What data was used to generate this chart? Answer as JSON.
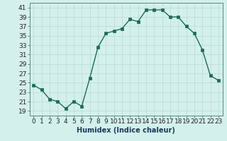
{
  "x": [
    0,
    1,
    2,
    3,
    4,
    5,
    6,
    7,
    8,
    9,
    10,
    11,
    12,
    13,
    14,
    15,
    16,
    17,
    18,
    19,
    20,
    21,
    22,
    23
  ],
  "y": [
    24.5,
    23.5,
    21.5,
    21.0,
    19.5,
    21.0,
    20.0,
    26.0,
    32.5,
    35.5,
    36.0,
    36.5,
    38.5,
    38.0,
    40.5,
    40.5,
    40.5,
    39.0,
    39.0,
    37.0,
    35.5,
    32.0,
    26.5,
    25.5
  ],
  "line_color": "#1a6b5a",
  "marker": "s",
  "markersize": 2.5,
  "linewidth": 1.0,
  "xlabel": "Humidex (Indice chaleur)",
  "ylim": [
    18,
    42
  ],
  "xlim": [
    -0.5,
    23.5
  ],
  "yticks": [
    19,
    21,
    23,
    25,
    27,
    29,
    31,
    33,
    35,
    37,
    39,
    41
  ],
  "xticks": [
    0,
    1,
    2,
    3,
    4,
    5,
    6,
    7,
    8,
    9,
    10,
    11,
    12,
    13,
    14,
    15,
    16,
    17,
    18,
    19,
    20,
    21,
    22,
    23
  ],
  "xtick_labels": [
    "0",
    "1",
    "2",
    "3",
    "4",
    "5",
    "6",
    "7",
    "8",
    "9",
    "10",
    "11",
    "12",
    "13",
    "14",
    "15",
    "16",
    "17",
    "18",
    "19",
    "20",
    "21",
    "22",
    "23"
  ],
  "bg_color": "#d4f0ec",
  "grid_color": "#b8d8d4",
  "axis_color": "#5a8a80",
  "xlabel_fontsize": 7,
  "tick_fontsize": 6.5,
  "xlabel_color": "#1a3a5c"
}
